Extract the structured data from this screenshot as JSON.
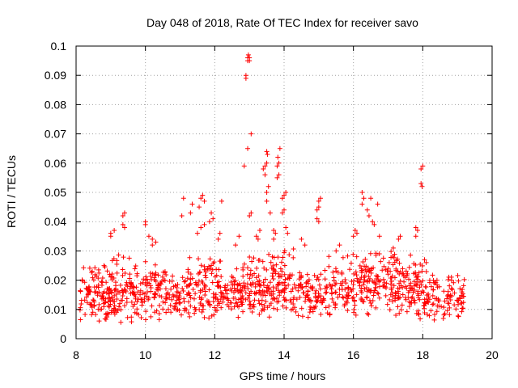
{
  "chart_data": {
    "type": "scatter",
    "title": "Day 048 of 2018, Rate Of TEC Index for receiver savo",
    "xlabel": "GPS time / hours",
    "ylabel": "ROTI / TECUs",
    "xlim": [
      8,
      20
    ],
    "ylim": [
      0,
      0.1
    ],
    "x_ticks": [
      "8",
      "10",
      "12",
      "14",
      "16",
      "18",
      "20"
    ],
    "y_ticks": [
      "0",
      "0.01",
      "0.02",
      "0.03",
      "0.04",
      "0.05",
      "0.06",
      "0.07",
      "0.08",
      "0.09",
      "0.1"
    ],
    "grid": true,
    "marker": "+",
    "series": [
      {
        "name": "ROTI",
        "color": "#ff0000",
        "clusters": [
          {
            "x_range": [
              8.1,
              9.0
            ],
            "y_range": [
              0.005,
              0.027
            ],
            "count": 110
          },
          {
            "x_range": [
              9.0,
              9.6
            ],
            "y_range": [
              0.004,
              0.03
            ],
            "count": 75
          },
          {
            "x_range": [
              9.6,
              10.6
            ],
            "y_range": [
              0.006,
              0.028
            ],
            "count": 110
          },
          {
            "x_range": [
              10.6,
              11.2
            ],
            "y_range": [
              0.006,
              0.024
            ],
            "count": 55
          },
          {
            "x_range": [
              11.2,
              12.2
            ],
            "y_range": [
              0.006,
              0.03
            ],
            "count": 115
          },
          {
            "x_range": [
              12.2,
              12.8
            ],
            "y_range": [
              0.007,
              0.025
            ],
            "count": 60
          },
          {
            "x_range": [
              12.8,
              13.6
            ],
            "y_range": [
              0.007,
              0.03
            ],
            "count": 95
          },
          {
            "x_range": [
              13.6,
              14.3
            ],
            "y_range": [
              0.007,
              0.032
            ],
            "count": 85
          },
          {
            "x_range": [
              14.3,
              15.2
            ],
            "y_range": [
              0.005,
              0.025
            ],
            "count": 85
          },
          {
            "x_range": [
              15.2,
              16.2
            ],
            "y_range": [
              0.006,
              0.03
            ],
            "count": 90
          },
          {
            "x_range": [
              16.2,
              17.2
            ],
            "y_range": [
              0.008,
              0.032
            ],
            "count": 120
          },
          {
            "x_range": [
              17.2,
              18.0
            ],
            "y_range": [
              0.006,
              0.03
            ],
            "count": 100
          },
          {
            "x_range": [
              18.0,
              19.2
            ],
            "y_range": [
              0.005,
              0.024
            ],
            "count": 110
          }
        ],
        "peaks": [
          [
            9.0,
            0.036
          ],
          [
            9.1,
            0.037
          ],
          [
            9.0,
            0.035
          ],
          [
            9.35,
            0.042
          ],
          [
            9.4,
            0.043
          ],
          [
            9.35,
            0.039
          ],
          [
            9.4,
            0.038
          ],
          [
            10.0,
            0.039
          ],
          [
            10.0,
            0.04
          ],
          [
            10.1,
            0.035
          ],
          [
            10.2,
            0.032
          ],
          [
            10.3,
            0.033
          ],
          [
            10.2,
            0.034
          ],
          [
            11.1,
            0.048
          ],
          [
            11.05,
            0.042
          ],
          [
            11.3,
            0.043
          ],
          [
            11.35,
            0.046
          ],
          [
            11.6,
            0.048
          ],
          [
            11.65,
            0.049
          ],
          [
            11.7,
            0.047
          ],
          [
            11.55,
            0.045
          ],
          [
            11.6,
            0.038
          ],
          [
            11.7,
            0.039
          ],
          [
            11.5,
            0.036
          ],
          [
            11.9,
            0.043
          ],
          [
            11.95,
            0.041
          ],
          [
            11.85,
            0.04
          ],
          [
            12.1,
            0.034
          ],
          [
            12.15,
            0.036
          ],
          [
            12.2,
            0.047
          ],
          [
            12.6,
            0.032
          ],
          [
            12.7,
            0.035
          ],
          [
            12.85,
            0.059
          ],
          [
            12.95,
            0.065
          ],
          [
            12.95,
            0.095
          ],
          [
            12.95,
            0.096
          ],
          [
            12.97,
            0.097
          ],
          [
            13.0,
            0.096
          ],
          [
            13.0,
            0.095
          ],
          [
            12.9,
            0.089
          ],
          [
            12.9,
            0.09
          ],
          [
            13.05,
            0.07
          ],
          [
            13.0,
            0.042
          ],
          [
            13.05,
            0.043
          ],
          [
            13.2,
            0.035
          ],
          [
            13.3,
            0.037
          ],
          [
            13.25,
            0.034
          ],
          [
            13.4,
            0.058
          ],
          [
            13.45,
            0.059
          ],
          [
            13.5,
            0.06
          ],
          [
            13.45,
            0.056
          ],
          [
            13.5,
            0.064
          ],
          [
            13.52,
            0.063
          ],
          [
            13.5,
            0.05
          ],
          [
            13.55,
            0.052
          ],
          [
            13.5,
            0.047
          ],
          [
            13.6,
            0.043
          ],
          [
            13.7,
            0.034
          ],
          [
            13.75,
            0.036
          ],
          [
            13.7,
            0.037
          ],
          [
            13.8,
            0.059
          ],
          [
            13.85,
            0.06
          ],
          [
            13.82,
            0.062
          ],
          [
            13.88,
            0.065
          ],
          [
            13.8,
            0.055
          ],
          [
            13.85,
            0.056
          ],
          [
            13.95,
            0.048
          ],
          [
            14.0,
            0.049
          ],
          [
            14.05,
            0.05
          ],
          [
            13.95,
            0.043
          ],
          [
            14.0,
            0.044
          ],
          [
            14.05,
            0.038
          ],
          [
            14.1,
            0.036
          ],
          [
            14.5,
            0.034
          ],
          [
            14.6,
            0.032
          ],
          [
            14.95,
            0.044
          ],
          [
            15.0,
            0.045
          ],
          [
            15.0,
            0.047
          ],
          [
            15.05,
            0.048
          ],
          [
            14.95,
            0.041
          ],
          [
            15.0,
            0.04
          ],
          [
            15.5,
            0.03
          ],
          [
            15.6,
            0.032
          ],
          [
            16.0,
            0.035
          ],
          [
            16.1,
            0.036
          ],
          [
            16.05,
            0.037
          ],
          [
            16.25,
            0.05
          ],
          [
            16.3,
            0.048
          ],
          [
            16.25,
            0.046
          ],
          [
            16.4,
            0.044
          ],
          [
            16.45,
            0.042
          ],
          [
            16.5,
            0.048
          ],
          [
            16.55,
            0.04
          ],
          [
            16.6,
            0.039
          ],
          [
            16.7,
            0.046
          ],
          [
            16.75,
            0.035
          ],
          [
            17.3,
            0.034
          ],
          [
            17.35,
            0.035
          ],
          [
            17.8,
            0.038
          ],
          [
            17.85,
            0.037
          ],
          [
            17.8,
            0.035
          ],
          [
            17.95,
            0.053
          ],
          [
            17.98,
            0.052
          ],
          [
            17.95,
            0.058
          ],
          [
            18.0,
            0.059
          ],
          [
            18.05,
            0.027
          ],
          [
            18.1,
            0.026
          ]
        ]
      }
    ]
  }
}
